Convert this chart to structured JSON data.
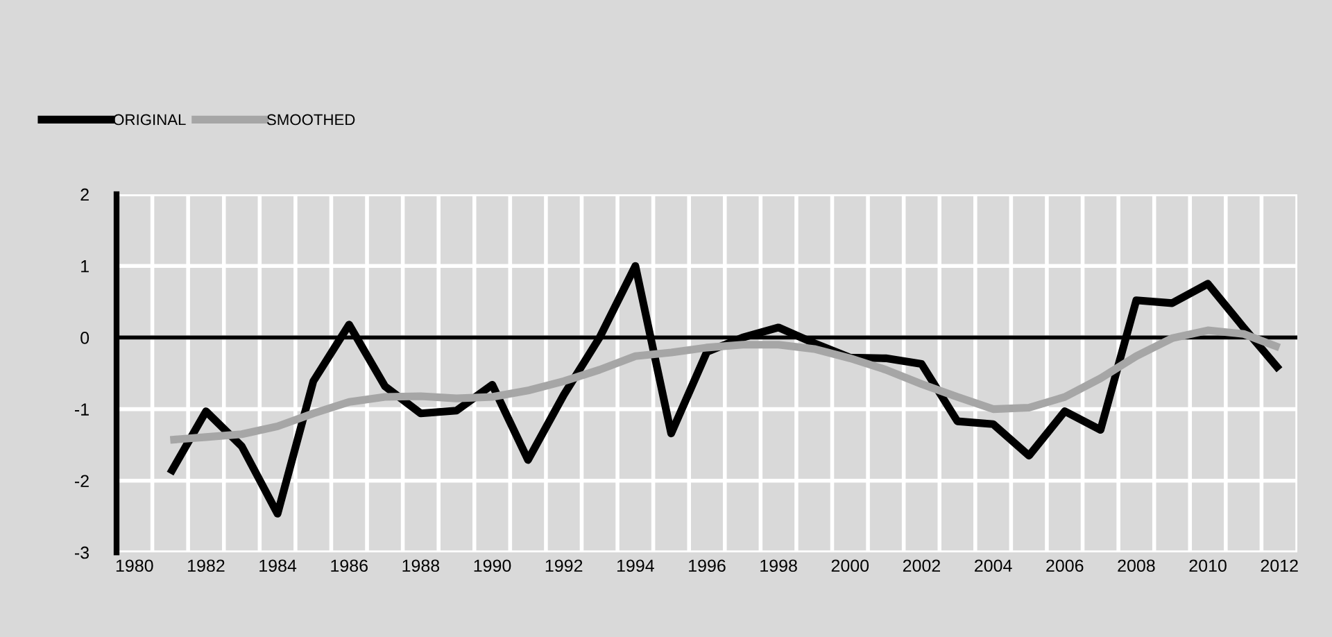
{
  "chart_data": {
    "type": "line",
    "categories": [
      "1980",
      null,
      "1982",
      null,
      "1984",
      null,
      "1986",
      null,
      "1988",
      null,
      "1990",
      null,
      "1992",
      null,
      "1994",
      null,
      "1996",
      null,
      "1998",
      null,
      "2000",
      null,
      "2002",
      null,
      "2004",
      null,
      "2006",
      null,
      "2008",
      null,
      "2010",
      null,
      "2012"
    ],
    "series": [
      {
        "name": "ORIGINAL",
        "color": "#000000",
        "values": [
          null,
          -1.9,
          -1.03,
          -1.52,
          -2.46,
          -0.61,
          0.18,
          -0.68,
          -1.06,
          -1.02,
          -0.66,
          -1.71,
          -0.8,
          0.0,
          1.0,
          -1.34,
          -0.2,
          0.0,
          0.14,
          -0.08,
          -0.28,
          -0.29,
          -0.37,
          -1.17,
          -1.21,
          -1.65,
          -1.03,
          -1.29,
          0.52,
          0.48,
          0.75,
          0.14,
          -0.45
        ]
      },
      {
        "name": "SMOOTHED",
        "color": "#a6a6a6",
        "values": [
          null,
          -1.43,
          -1.39,
          -1.35,
          -1.24,
          -1.06,
          -0.9,
          -0.83,
          -0.82,
          -0.85,
          -0.83,
          -0.74,
          -0.61,
          -0.45,
          -0.26,
          -0.21,
          -0.14,
          -0.1,
          -0.1,
          -0.16,
          -0.29,
          -0.45,
          -0.65,
          -0.83,
          -1.0,
          -0.98,
          -0.83,
          -0.57,
          -0.26,
          -0.01,
          0.1,
          0.05,
          -0.14
        ]
      }
    ],
    "ylim": [
      -3,
      2
    ],
    "yticks": [
      -3,
      -2,
      -1,
      0,
      1,
      2
    ],
    "ref_lines": [
      {
        "axis": "y",
        "value": 0,
        "color": "#000000"
      }
    ],
    "grid": true,
    "legend": "top left",
    "marker": "none",
    "line_style": "solid"
  }
}
